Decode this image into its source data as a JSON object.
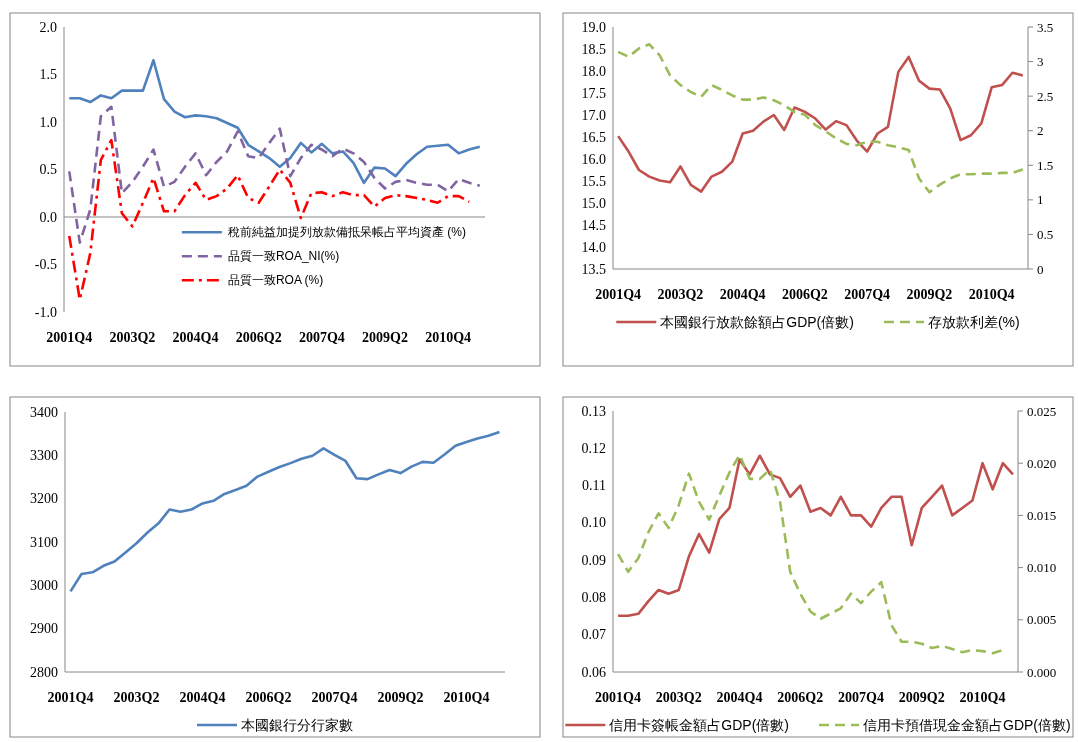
{
  "chart_data": [
    {
      "type": "line",
      "categories": [
        "2001Q4",
        null,
        null,
        null,
        null,
        null,
        "2003Q2",
        null,
        null,
        null,
        null,
        null,
        "2004Q4",
        null,
        null,
        null,
        null,
        null,
        "2006Q2",
        null,
        null,
        null,
        null,
        null,
        "2007Q4",
        null,
        null,
        null,
        null,
        null,
        "2009Q2",
        null,
        null,
        null,
        null,
        null,
        "2010Q4",
        null,
        null,
        null
      ],
      "ylim": [
        -1,
        2
      ],
      "yticks": [
        {
          "value": -1,
          "label": "-1.0"
        },
        {
          "value": -0.5,
          "label": "-0.5"
        },
        {
          "value": 0,
          "label": "0.0"
        },
        0.5,
        {
          "value": 1,
          "label": "1.0"
        },
        1.5,
        {
          "value": 2,
          "label": "2.0"
        }
      ],
      "legend": "center",
      "series": [
        {
          "name": "稅前純益加提列放款備抵呆帳占平均資產 (%)",
          "color": "#4f81bd",
          "line_style": "solid",
          "values": [
            1.25,
            1.25,
            1.21,
            1.28,
            1.25,
            1.33,
            1.33,
            1.33,
            1.65,
            1.24,
            1.11,
            1.05,
            1.07,
            1.06,
            1.04,
            0.99,
            0.94,
            0.76,
            0.69,
            0.62,
            0.53,
            0.62,
            0.78,
            0.68,
            0.77,
            0.67,
            0.69,
            0.57,
            0.36,
            0.52,
            0.51,
            0.43,
            0.56,
            0.66,
            0.74,
            0.75,
            0.76,
            0.67,
            0.71,
            0.74
          ]
        },
        {
          "name": "品質一致ROA_NI(%)",
          "color": "#8064a2",
          "line_style": "dashed",
          "values": [
            0.48,
            -0.27,
            0.08,
            1.06,
            1.16,
            0.25,
            0.37,
            0.53,
            0.71,
            0.32,
            0.37,
            0.53,
            0.67,
            0.44,
            0.58,
            0.69,
            0.9,
            0.64,
            0.62,
            0.78,
            0.93,
            0.43,
            0.62,
            0.76,
            0.71,
            0.64,
            0.72,
            0.67,
            0.58,
            0.41,
            0.3,
            0.37,
            0.39,
            0.36,
            0.34,
            0.34,
            0.27,
            0.4,
            0.36,
            0.33
          ]
        },
        {
          "name": "品質一致ROA (%)",
          "color": "#ff0000",
          "line_style": "dashdot",
          "values": [
            -0.2,
            -0.87,
            -0.38,
            0.6,
            0.81,
            0.04,
            -0.1,
            0.15,
            0.41,
            0.06,
            0.06,
            0.23,
            0.36,
            0.18,
            0.22,
            0.3,
            0.44,
            0.2,
            0.15,
            0.32,
            0.5,
            0.36,
            -0.01,
            0.25,
            0.26,
            0.22,
            0.26,
            0.23,
            0.23,
            0.11,
            0.2,
            0.23,
            0.22,
            0.2,
            0.18,
            0.15,
            0.22,
            0.22,
            0.16,
            null
          ]
        }
      ]
    },
    {
      "type": "line",
      "categories": [
        "2001Q4",
        null,
        null,
        null,
        null,
        null,
        "2003Q2",
        null,
        null,
        null,
        null,
        null,
        "2004Q4",
        null,
        null,
        null,
        null,
        null,
        "2006Q2",
        null,
        null,
        null,
        null,
        null,
        "2007Q4",
        null,
        null,
        null,
        null,
        null,
        "2009Q2",
        null,
        null,
        null,
        null,
        null,
        "2010Q4",
        null,
        null,
        null
      ],
      "ylim": [
        13.5,
        19
      ],
      "yticks": [
        13.5,
        {
          "value": 14,
          "label": "14.0"
        },
        14.5,
        {
          "value": 15,
          "label": "15.0"
        },
        15.5,
        {
          "value": 16,
          "label": "16.0"
        },
        16.5,
        {
          "value": 17,
          "label": "17.0"
        },
        17.5,
        {
          "value": 18,
          "label": "18.0"
        },
        18.5,
        {
          "value": 19,
          "label": "19.0"
        }
      ],
      "y2lim": [
        0,
        3.5
      ],
      "y2ticks": [
        0,
        0.5,
        1,
        1.5,
        2,
        2.5,
        3,
        3.5
      ],
      "legend": "bottom",
      "series": [
        {
          "name": "本國銀行放款餘額占GDP(倍數)",
          "color": "#c0504d",
          "line_style": "solid",
          "values": [
            16.52,
            16.17,
            15.75,
            15.6,
            15.51,
            15.47,
            15.83,
            15.41,
            15.26,
            15.6,
            15.71,
            15.94,
            16.58,
            16.64,
            16.85,
            17.0,
            16.66,
            17.17,
            17.07,
            16.92,
            16.67,
            16.86,
            16.77,
            16.42,
            16.17,
            16.58,
            16.73,
            17.98,
            18.32,
            17.78,
            17.6,
            17.58,
            17.15,
            16.43,
            16.54,
            16.81,
            17.63,
            17.68,
            17.96,
            17.9
          ]
        },
        {
          "name": "存放款利差(%)",
          "color": "#9bbb59",
          "line_style": "dashed",
          "axis": "y2",
          "values": [
            3.14,
            3.07,
            3.19,
            3.25,
            3.09,
            2.8,
            2.66,
            2.56,
            2.49,
            2.66,
            2.59,
            2.51,
            2.45,
            2.45,
            2.48,
            2.44,
            2.37,
            2.27,
            2.23,
            2.08,
            1.99,
            1.89,
            1.81,
            1.79,
            1.84,
            1.84,
            1.79,
            1.76,
            1.72,
            1.31,
            1.11,
            1.22,
            1.31,
            1.37,
            1.37,
            1.38,
            1.38,
            1.39,
            1.39,
            1.44
          ]
        }
      ]
    },
    {
      "type": "line",
      "categories": [
        "2001Q4",
        null,
        null,
        null,
        null,
        null,
        "2003Q2",
        null,
        null,
        null,
        null,
        null,
        "2004Q4",
        null,
        null,
        null,
        null,
        null,
        "2006Q2",
        null,
        null,
        null,
        null,
        null,
        "2007Q4",
        null,
        null,
        null,
        null,
        null,
        "2009Q2",
        null,
        null,
        null,
        null,
        null,
        "2010Q4",
        null,
        null,
        null
      ],
      "ylim": [
        2800,
        3400
      ],
      "yticks": [
        2800,
        2900,
        3000,
        3100,
        3200,
        3300,
        3400
      ],
      "legend": "bottom",
      "series": [
        {
          "name": "本國銀行分行家數",
          "color": "#4f81bd",
          "line_style": "solid",
          "values": [
            2986,
            3026,
            3030,
            3045,
            3055,
            3076,
            3097,
            3122,
            3143,
            3175,
            3170,
            3175,
            3189,
            3195,
            3211,
            3220,
            3230,
            3251,
            3262,
            3273,
            3282,
            3292,
            3299,
            3316,
            3301,
            3287,
            3247,
            3245,
            3256,
            3266,
            3259,
            3274,
            3285,
            3283,
            3302,
            3322,
            3331,
            3339,
            3345,
            3354
          ]
        }
      ]
    },
    {
      "type": "line",
      "categories": [
        "2001Q4",
        null,
        null,
        null,
        null,
        null,
        "2003Q2",
        null,
        null,
        null,
        null,
        null,
        "2004Q4",
        null,
        null,
        null,
        null,
        null,
        "2006Q2",
        null,
        null,
        null,
        null,
        null,
        "2007Q4",
        null,
        null,
        null,
        null,
        null,
        "2009Q2",
        null,
        null,
        null,
        null,
        null,
        "2010Q4",
        null,
        null,
        null
      ],
      "ylim": [
        0.06,
        0.13
      ],
      "yticks": [
        0.06,
        0.07,
        0.08,
        0.09,
        {
          "value": 0.1,
          "label": "0.10"
        },
        0.11,
        0.12,
        0.13
      ],
      "y2lim": [
        0,
        0.025
      ],
      "y2ticks": [
        {
          "value": 0,
          "label": "0.000"
        },
        0.005,
        {
          "value": 0.01,
          "label": "0.010"
        },
        0.015,
        {
          "value": 0.02,
          "label": "0.020"
        },
        0.025
      ],
      "legend": "bottom",
      "series": [
        {
          "name": "信用卡簽帳金額占GDP(倍數)",
          "color": "#c0504d",
          "line_style": "solid",
          "values": [
            0.0751,
            0.0751,
            0.0756,
            0.079,
            0.082,
            0.081,
            0.082,
            0.091,
            0.097,
            0.092,
            0.101,
            0.104,
            0.117,
            0.113,
            0.118,
            0.113,
            0.112,
            0.107,
            0.11,
            0.103,
            0.104,
            0.102,
            0.107,
            0.102,
            0.102,
            0.099,
            0.104,
            0.107,
            0.107,
            0.094,
            0.104,
            0.107,
            0.11,
            0.102,
            0.104,
            0.106,
            0.116,
            0.109,
            0.116,
            0.113
          ]
        },
        {
          "name": "信用卡預借現金金額占GDP(倍數)",
          "color": "#9bbb59",
          "line_style": "dashed",
          "axis": "y2",
          "values": [
            0.0113,
            0.0096,
            0.0109,
            0.0134,
            0.0152,
            0.0138,
            0.016,
            0.019,
            0.0163,
            0.0146,
            0.0169,
            0.0191,
            0.0208,
            0.0185,
            0.0185,
            0.0194,
            0.0163,
            0.0096,
            0.0075,
            0.0058,
            0.0051,
            0.0056,
            0.0061,
            0.0075,
            0.0066,
            0.0077,
            0.0086,
            0.0045,
            0.0029,
            0.0029,
            0.0027,
            0.0023,
            0.0025,
            0.0022,
            0.0019,
            0.0021,
            0.002,
            0.0018,
            0.0021,
            null
          ]
        }
      ]
    }
  ]
}
